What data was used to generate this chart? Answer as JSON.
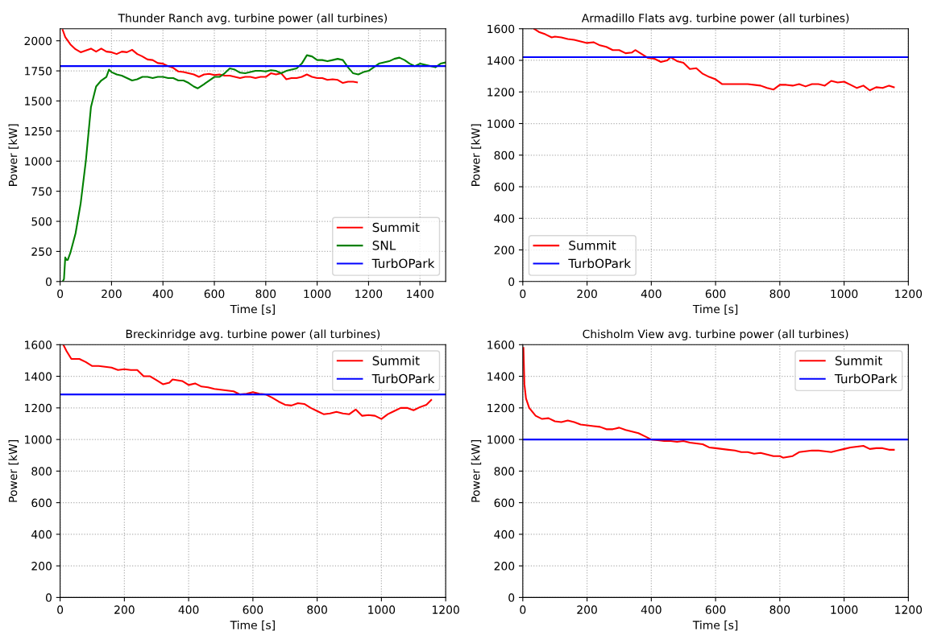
{
  "chart_data": [
    {
      "type": "line",
      "title": "Thunder Ranch avg. turbine power (all turbines)",
      "xlabel": "Time [s]",
      "ylabel": "Power [kW]",
      "xlim": [
        0,
        1500
      ],
      "ylim": [
        0,
        2100
      ],
      "xticks": [
        0,
        200,
        400,
        600,
        800,
        1000,
        1200,
        1400
      ],
      "yticks": [
        0,
        250,
        500,
        750,
        1000,
        1250,
        1500,
        1750,
        2000
      ],
      "grid": true,
      "legend": "lower right",
      "series": [
        {
          "name": "Summit",
          "color": "#ff0000",
          "x": [
            10,
            20,
            40,
            60,
            80,
            100,
            120,
            140,
            160,
            180,
            200,
            220,
            240,
            260,
            280,
            300,
            320,
            340,
            360,
            380,
            400,
            420,
            440,
            460,
            480,
            500,
            520,
            540,
            560,
            580,
            600,
            620,
            640,
            660,
            680,
            700,
            720,
            740,
            760,
            780,
            800,
            820,
            840,
            860,
            880,
            900,
            920,
            940,
            960,
            980,
            1000,
            1020,
            1040,
            1060,
            1080,
            1100,
            1120,
            1140,
            1155
          ],
          "values": [
            2090,
            2030,
            1970,
            1930,
            1905,
            1920,
            1935,
            1910,
            1935,
            1910,
            1905,
            1890,
            1910,
            1905,
            1925,
            1890,
            1870,
            1845,
            1840,
            1815,
            1810,
            1790,
            1775,
            1745,
            1740,
            1730,
            1720,
            1700,
            1720,
            1725,
            1715,
            1720,
            1710,
            1710,
            1700,
            1690,
            1700,
            1700,
            1690,
            1700,
            1700,
            1730,
            1720,
            1730,
            1680,
            1690,
            1690,
            1700,
            1720,
            1700,
            1690,
            1690,
            1675,
            1680,
            1675,
            1650,
            1660,
            1660,
            1655
          ]
        },
        {
          "name": "SNL",
          "color": "#008000",
          "x": [
            10,
            15,
            20,
            25,
            30,
            40,
            60,
            80,
            100,
            120,
            140,
            160,
            180,
            190,
            200,
            220,
            240,
            260,
            280,
            300,
            320,
            340,
            360,
            380,
            400,
            420,
            440,
            460,
            480,
            500,
            520,
            535,
            560,
            580,
            600,
            620,
            640,
            660,
            680,
            700,
            720,
            740,
            760,
            780,
            800,
            820,
            840,
            860,
            880,
            900,
            920,
            940,
            960,
            980,
            1000,
            1020,
            1040,
            1060,
            1080,
            1100,
            1120,
            1140,
            1160,
            1180,
            1200,
            1220,
            1240,
            1260,
            1280,
            1300,
            1320,
            1340,
            1360,
            1380,
            1400,
            1420,
            1440,
            1460,
            1480,
            1500
          ],
          "values": [
            0,
            20,
            200,
            180,
            180,
            240,
            400,
            650,
            1000,
            1450,
            1620,
            1670,
            1700,
            1760,
            1740,
            1720,
            1710,
            1690,
            1670,
            1680,
            1700,
            1700,
            1690,
            1700,
            1700,
            1690,
            1690,
            1670,
            1670,
            1650,
            1620,
            1605,
            1640,
            1670,
            1700,
            1700,
            1730,
            1770,
            1760,
            1735,
            1730,
            1740,
            1750,
            1750,
            1745,
            1755,
            1750,
            1730,
            1750,
            1760,
            1770,
            1810,
            1880,
            1870,
            1840,
            1840,
            1830,
            1840,
            1850,
            1840,
            1780,
            1730,
            1720,
            1740,
            1750,
            1780,
            1810,
            1820,
            1830,
            1850,
            1860,
            1840,
            1810,
            1790,
            1810,
            1800,
            1790,
            1780,
            1810,
            1820
          ]
        },
        {
          "name": "TurbOPark",
          "color": "#0000ff",
          "x": [
            0,
            1500
          ],
          "values": [
            1790,
            1790
          ]
        }
      ]
    },
    {
      "type": "line",
      "title": "Armadillo Flats avg. turbine power (all turbines)",
      "xlabel": "Time [s]",
      "ylabel": "Power [kW]",
      "xlim": [
        0,
        1200
      ],
      "ylim": [
        0,
        1600
      ],
      "xticks": [
        0,
        200,
        400,
        600,
        800,
        1000,
        1200
      ],
      "yticks": [
        0,
        200,
        400,
        600,
        800,
        1000,
        1200,
        1400,
        1600
      ],
      "grid": true,
      "legend": "lower left",
      "series": [
        {
          "name": "Summit",
          "color": "#ff0000",
          "x": [
            35,
            50,
            70,
            90,
            100,
            120,
            140,
            160,
            180,
            200,
            220,
            240,
            260,
            280,
            300,
            320,
            340,
            350,
            370,
            390,
            410,
            430,
            450,
            460,
            480,
            500,
            520,
            540,
            560,
            580,
            600,
            620,
            650,
            700,
            740,
            760,
            780,
            800,
            820,
            840,
            860,
            880,
            900,
            920,
            940,
            960,
            980,
            1000,
            1020,
            1040,
            1060,
            1080,
            1100,
            1120,
            1140,
            1155
          ],
          "values": [
            1600,
            1580,
            1565,
            1545,
            1550,
            1545,
            1535,
            1530,
            1520,
            1510,
            1515,
            1495,
            1485,
            1465,
            1465,
            1445,
            1450,
            1465,
            1440,
            1415,
            1410,
            1390,
            1400,
            1420,
            1395,
            1385,
            1345,
            1350,
            1315,
            1295,
            1280,
            1250,
            1250,
            1250,
            1240,
            1225,
            1215,
            1245,
            1245,
            1240,
            1250,
            1235,
            1250,
            1250,
            1240,
            1270,
            1260,
            1265,
            1245,
            1225,
            1240,
            1210,
            1230,
            1225,
            1240,
            1230
          ]
        },
        {
          "name": "TurbOPark",
          "color": "#0000ff",
          "x": [
            0,
            1200
          ],
          "values": [
            1420,
            1420
          ]
        }
      ]
    },
    {
      "type": "line",
      "title": "Breckinridge avg. turbine power (all turbines)",
      "xlabel": "Time [s]",
      "ylabel": "Power [kW]",
      "xlim": [
        0,
        1200
      ],
      "ylim": [
        0,
        1600
      ],
      "xticks": [
        0,
        200,
        400,
        600,
        800,
        1000,
        1200
      ],
      "yticks": [
        0,
        200,
        400,
        600,
        800,
        1000,
        1200,
        1400,
        1600
      ],
      "grid": true,
      "legend": "upper right",
      "series": [
        {
          "name": "Summit",
          "color": "#ff0000",
          "x": [
            10,
            20,
            35,
            60,
            80,
            100,
            120,
            140,
            160,
            180,
            200,
            220,
            240,
            260,
            280,
            300,
            320,
            340,
            350,
            380,
            400,
            420,
            440,
            460,
            480,
            500,
            520,
            540,
            560,
            580,
            600,
            620,
            640,
            660,
            680,
            700,
            720,
            740,
            760,
            780,
            800,
            820,
            840,
            860,
            880,
            900,
            920,
            940,
            960,
            980,
            1000,
            1020,
            1040,
            1060,
            1080,
            1100,
            1120,
            1140,
            1155
          ],
          "values": [
            1600,
            1560,
            1510,
            1510,
            1490,
            1465,
            1465,
            1460,
            1455,
            1440,
            1445,
            1440,
            1440,
            1400,
            1400,
            1375,
            1350,
            1360,
            1380,
            1370,
            1345,
            1355,
            1335,
            1330,
            1320,
            1315,
            1310,
            1305,
            1285,
            1290,
            1300,
            1290,
            1285,
            1265,
            1240,
            1220,
            1215,
            1230,
            1225,
            1200,
            1180,
            1160,
            1165,
            1175,
            1165,
            1160,
            1190,
            1150,
            1155,
            1150,
            1130,
            1160,
            1180,
            1200,
            1200,
            1185,
            1205,
            1220,
            1250
          ]
        },
        {
          "name": "TurbOPark",
          "color": "#0000ff",
          "x": [
            0,
            1200
          ],
          "values": [
            1285,
            1285
          ]
        }
      ]
    },
    {
      "type": "line",
      "title": "Chisholm View avg. turbine power (all turbines)",
      "xlabel": "Time [s]",
      "ylabel": "Power [kW]",
      "xlim": [
        0,
        1200
      ],
      "ylim": [
        0,
        1600
      ],
      "xticks": [
        0,
        200,
        400,
        600,
        800,
        1000,
        1200
      ],
      "yticks": [
        0,
        200,
        400,
        600,
        800,
        1000,
        1200,
        1400,
        1600
      ],
      "grid": true,
      "legend": "upper right",
      "series": [
        {
          "name": "Summit",
          "color": "#ff0000",
          "x": [
            2,
            5,
            10,
            20,
            40,
            60,
            80,
            100,
            120,
            140,
            160,
            180,
            200,
            220,
            240,
            260,
            280,
            300,
            320,
            340,
            360,
            380,
            400,
            420,
            440,
            460,
            480,
            500,
            520,
            540,
            560,
            580,
            600,
            620,
            640,
            660,
            680,
            700,
            720,
            740,
            760,
            780,
            800,
            810,
            840,
            860,
            880,
            900,
            920,
            940,
            960,
            980,
            1000,
            1020,
            1040,
            1060,
            1080,
            1100,
            1120,
            1140,
            1155
          ],
          "values": [
            1580,
            1350,
            1260,
            1200,
            1150,
            1130,
            1135,
            1115,
            1110,
            1120,
            1110,
            1095,
            1090,
            1085,
            1080,
            1065,
            1065,
            1075,
            1060,
            1050,
            1040,
            1020,
            1000,
            995,
            990,
            990,
            985,
            990,
            980,
            975,
            970,
            950,
            945,
            940,
            935,
            930,
            920,
            920,
            910,
            915,
            905,
            895,
            895,
            885,
            895,
            920,
            925,
            930,
            930,
            925,
            920,
            930,
            940,
            950,
            955,
            960,
            940,
            945,
            945,
            935,
            935
          ]
        },
        {
          "name": "TurbOPark",
          "color": "#0000ff",
          "x": [
            0,
            1200
          ],
          "values": [
            1000,
            1000
          ]
        }
      ]
    }
  ]
}
